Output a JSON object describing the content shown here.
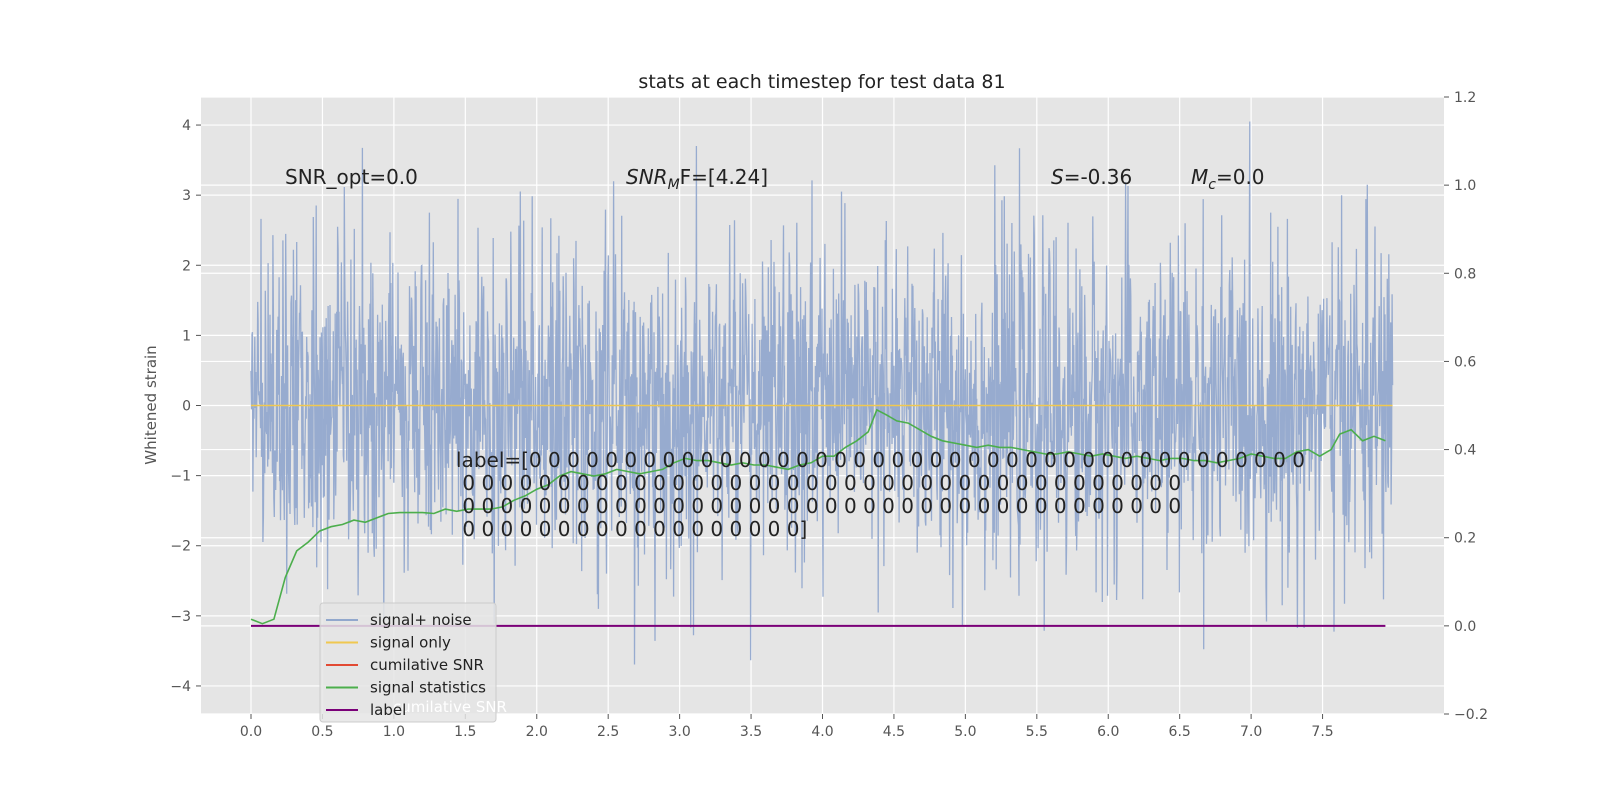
{
  "chart_data": {
    "type": "line",
    "title": "stats at each timestep for test data 81",
    "ylabel": "Whitened strain",
    "xlabel": "",
    "xlim": [
      -0.35,
      8.35
    ],
    "ylim": [
      -4.4,
      4.4
    ],
    "y2lim": [
      -0.2,
      1.2
    ],
    "grid": true,
    "legend_placement": "lower-left",
    "x_ticks": [
      "0.0",
      "0.5",
      "1.0",
      "1.5",
      "2.0",
      "2.5",
      "3.0",
      "3.5",
      "4.0",
      "4.5",
      "5.0",
      "5.5",
      "6.0",
      "6.5",
      "7.0",
      "7.5"
    ],
    "x_tick_values": [
      0,
      0.5,
      1,
      1.5,
      2,
      2.5,
      3,
      3.5,
      4,
      4.5,
      5,
      5.5,
      6,
      6.5,
      7,
      7.5
    ],
    "y_ticks": [
      "4",
      "3",
      "2",
      "1",
      "0",
      "−1",
      "−2",
      "−3",
      "−4"
    ],
    "y_tick_values": [
      4,
      3,
      2,
      1,
      0,
      -1,
      -2,
      -3,
      -4
    ],
    "y2_ticks": [
      "1.2",
      "1.0",
      "0.8",
      "0.6",
      "0.4",
      "0.2",
      "0.0",
      "−0.2"
    ],
    "y2_tick_values": [
      1.2,
      1.0,
      0.8,
      0.6,
      0.4,
      0.2,
      0.0,
      -0.2
    ],
    "annotations": {
      "snr_opt": "SNR_opt=0.0",
      "snr_mf_base": "SNR",
      "snr_mf_sub": "M",
      "snr_mf_rest": "F=[4.24]",
      "s_label": "S",
      "s_value": "=-0.36",
      "mc_base": "M",
      "mc_sub": "c",
      "mc_value": "=0.0",
      "label_lines": [
        "label=[0 0 0 0 0 0 0 0 0 0 0 0 0 0 0 0 0 0 0 0 0 0 0 0 0 0 0 0 0 0 0 0 0 0 0 0 0 0 0 0 0",
        " 0 0 0 0 0 0 0 0 0 0 0 0 0 0 0 0 0 0 0 0 0 0 0 0 0 0 0 0 0 0 0 0 0 0 0 0 0 0",
        " 0 0 0 0 0 0 0 0 0 0 0 0 0 0 0 0 0 0 0 0 0 0 0 0 0 0 0 0 0 0 0 0 0 0 0 0 0 0",
        " 0 0 0 0 0 0 0 0 0 0 0 0 0 0 0 0 0 0]"
      ]
    },
    "legend": [
      {
        "label": "signal+ noise",
        "color": "#92a8cd"
      },
      {
        "label": "signal only",
        "color": "#f0c850"
      },
      {
        "label": "cumilative SNR",
        "color": "#e24a33"
      },
      {
        "label": "signal statistics",
        "color": "#4cae4c"
      },
      {
        "label": "label",
        "color": "#7a0078"
      }
    ],
    "legend_hidden_text": "cumilative SNR",
    "series": [
      {
        "name": "signal+ noise",
        "axis": "left",
        "description_free": true,
        "x_range": [
          0.0,
          7.99
        ],
        "envelope_typical": [
          -1.4,
          1.4
        ],
        "peak_max": 4.05,
        "peak_min": -3.95
      },
      {
        "name": "signal only",
        "axis": "left",
        "x": [
          0.0,
          7.99
        ],
        "y": [
          0.0,
          0.0
        ]
      },
      {
        "name": "signal statistics",
        "axis": "right",
        "x": [
          0.0,
          0.08,
          0.16,
          0.24,
          0.32,
          0.4,
          0.48,
          0.56,
          0.64,
          0.72,
          0.8,
          0.88,
          0.96,
          1.04,
          1.12,
          1.2,
          1.28,
          1.36,
          1.44,
          1.52,
          1.6,
          1.68,
          1.76,
          1.84,
          1.92,
          2.0,
          2.08,
          2.16,
          2.24,
          2.32,
          2.4,
          2.48,
          2.56,
          2.64,
          2.72,
          2.8,
          2.88,
          2.96,
          3.04,
          3.12,
          3.2,
          3.28,
          3.36,
          3.44,
          3.52,
          3.6,
          3.68,
          3.76,
          3.84,
          3.92,
          4.0,
          4.08,
          4.16,
          4.24,
          4.32,
          4.38,
          4.44,
          4.52,
          4.6,
          4.68,
          4.76,
          4.84,
          4.92,
          5.0,
          5.08,
          5.16,
          5.24,
          5.32,
          5.4,
          5.48,
          5.56,
          5.64,
          5.72,
          5.8,
          5.88,
          5.96,
          6.04,
          6.12,
          6.2,
          6.28,
          6.36,
          6.44,
          6.52,
          6.6,
          6.68,
          6.76,
          6.84,
          6.92,
          7.0,
          7.08,
          7.16,
          7.24,
          7.32,
          7.4,
          7.48,
          7.56,
          7.62,
          7.7,
          7.78,
          7.86,
          7.94
        ],
        "y": [
          0.015,
          0.005,
          0.015,
          0.11,
          0.17,
          0.19,
          0.215,
          0.225,
          0.23,
          0.24,
          0.235,
          0.245,
          0.255,
          0.257,
          0.257,
          0.257,
          0.255,
          0.265,
          0.26,
          0.265,
          0.265,
          0.265,
          0.27,
          0.285,
          0.295,
          0.31,
          0.32,
          0.34,
          0.35,
          0.345,
          0.34,
          0.345,
          0.355,
          0.35,
          0.345,
          0.35,
          0.355,
          0.37,
          0.38,
          0.375,
          0.375,
          0.37,
          0.365,
          0.37,
          0.365,
          0.365,
          0.36,
          0.355,
          0.365,
          0.37,
          0.385,
          0.385,
          0.405,
          0.42,
          0.44,
          0.49,
          0.48,
          0.465,
          0.46,
          0.445,
          0.43,
          0.42,
          0.415,
          0.41,
          0.405,
          0.41,
          0.405,
          0.405,
          0.4,
          0.395,
          0.39,
          0.39,
          0.395,
          0.39,
          0.385,
          0.39,
          0.385,
          0.38,
          0.385,
          0.38,
          0.375,
          0.38,
          0.38,
          0.375,
          0.375,
          0.37,
          0.375,
          0.38,
          0.39,
          0.385,
          0.38,
          0.38,
          0.395,
          0.4,
          0.385,
          0.4,
          0.435,
          0.445,
          0.42,
          0.43,
          0.42
        ]
      },
      {
        "name": "label",
        "axis": "right",
        "x": [
          0.0,
          7.94
        ],
        "y": [
          0.0,
          0.0
        ]
      }
    ]
  }
}
